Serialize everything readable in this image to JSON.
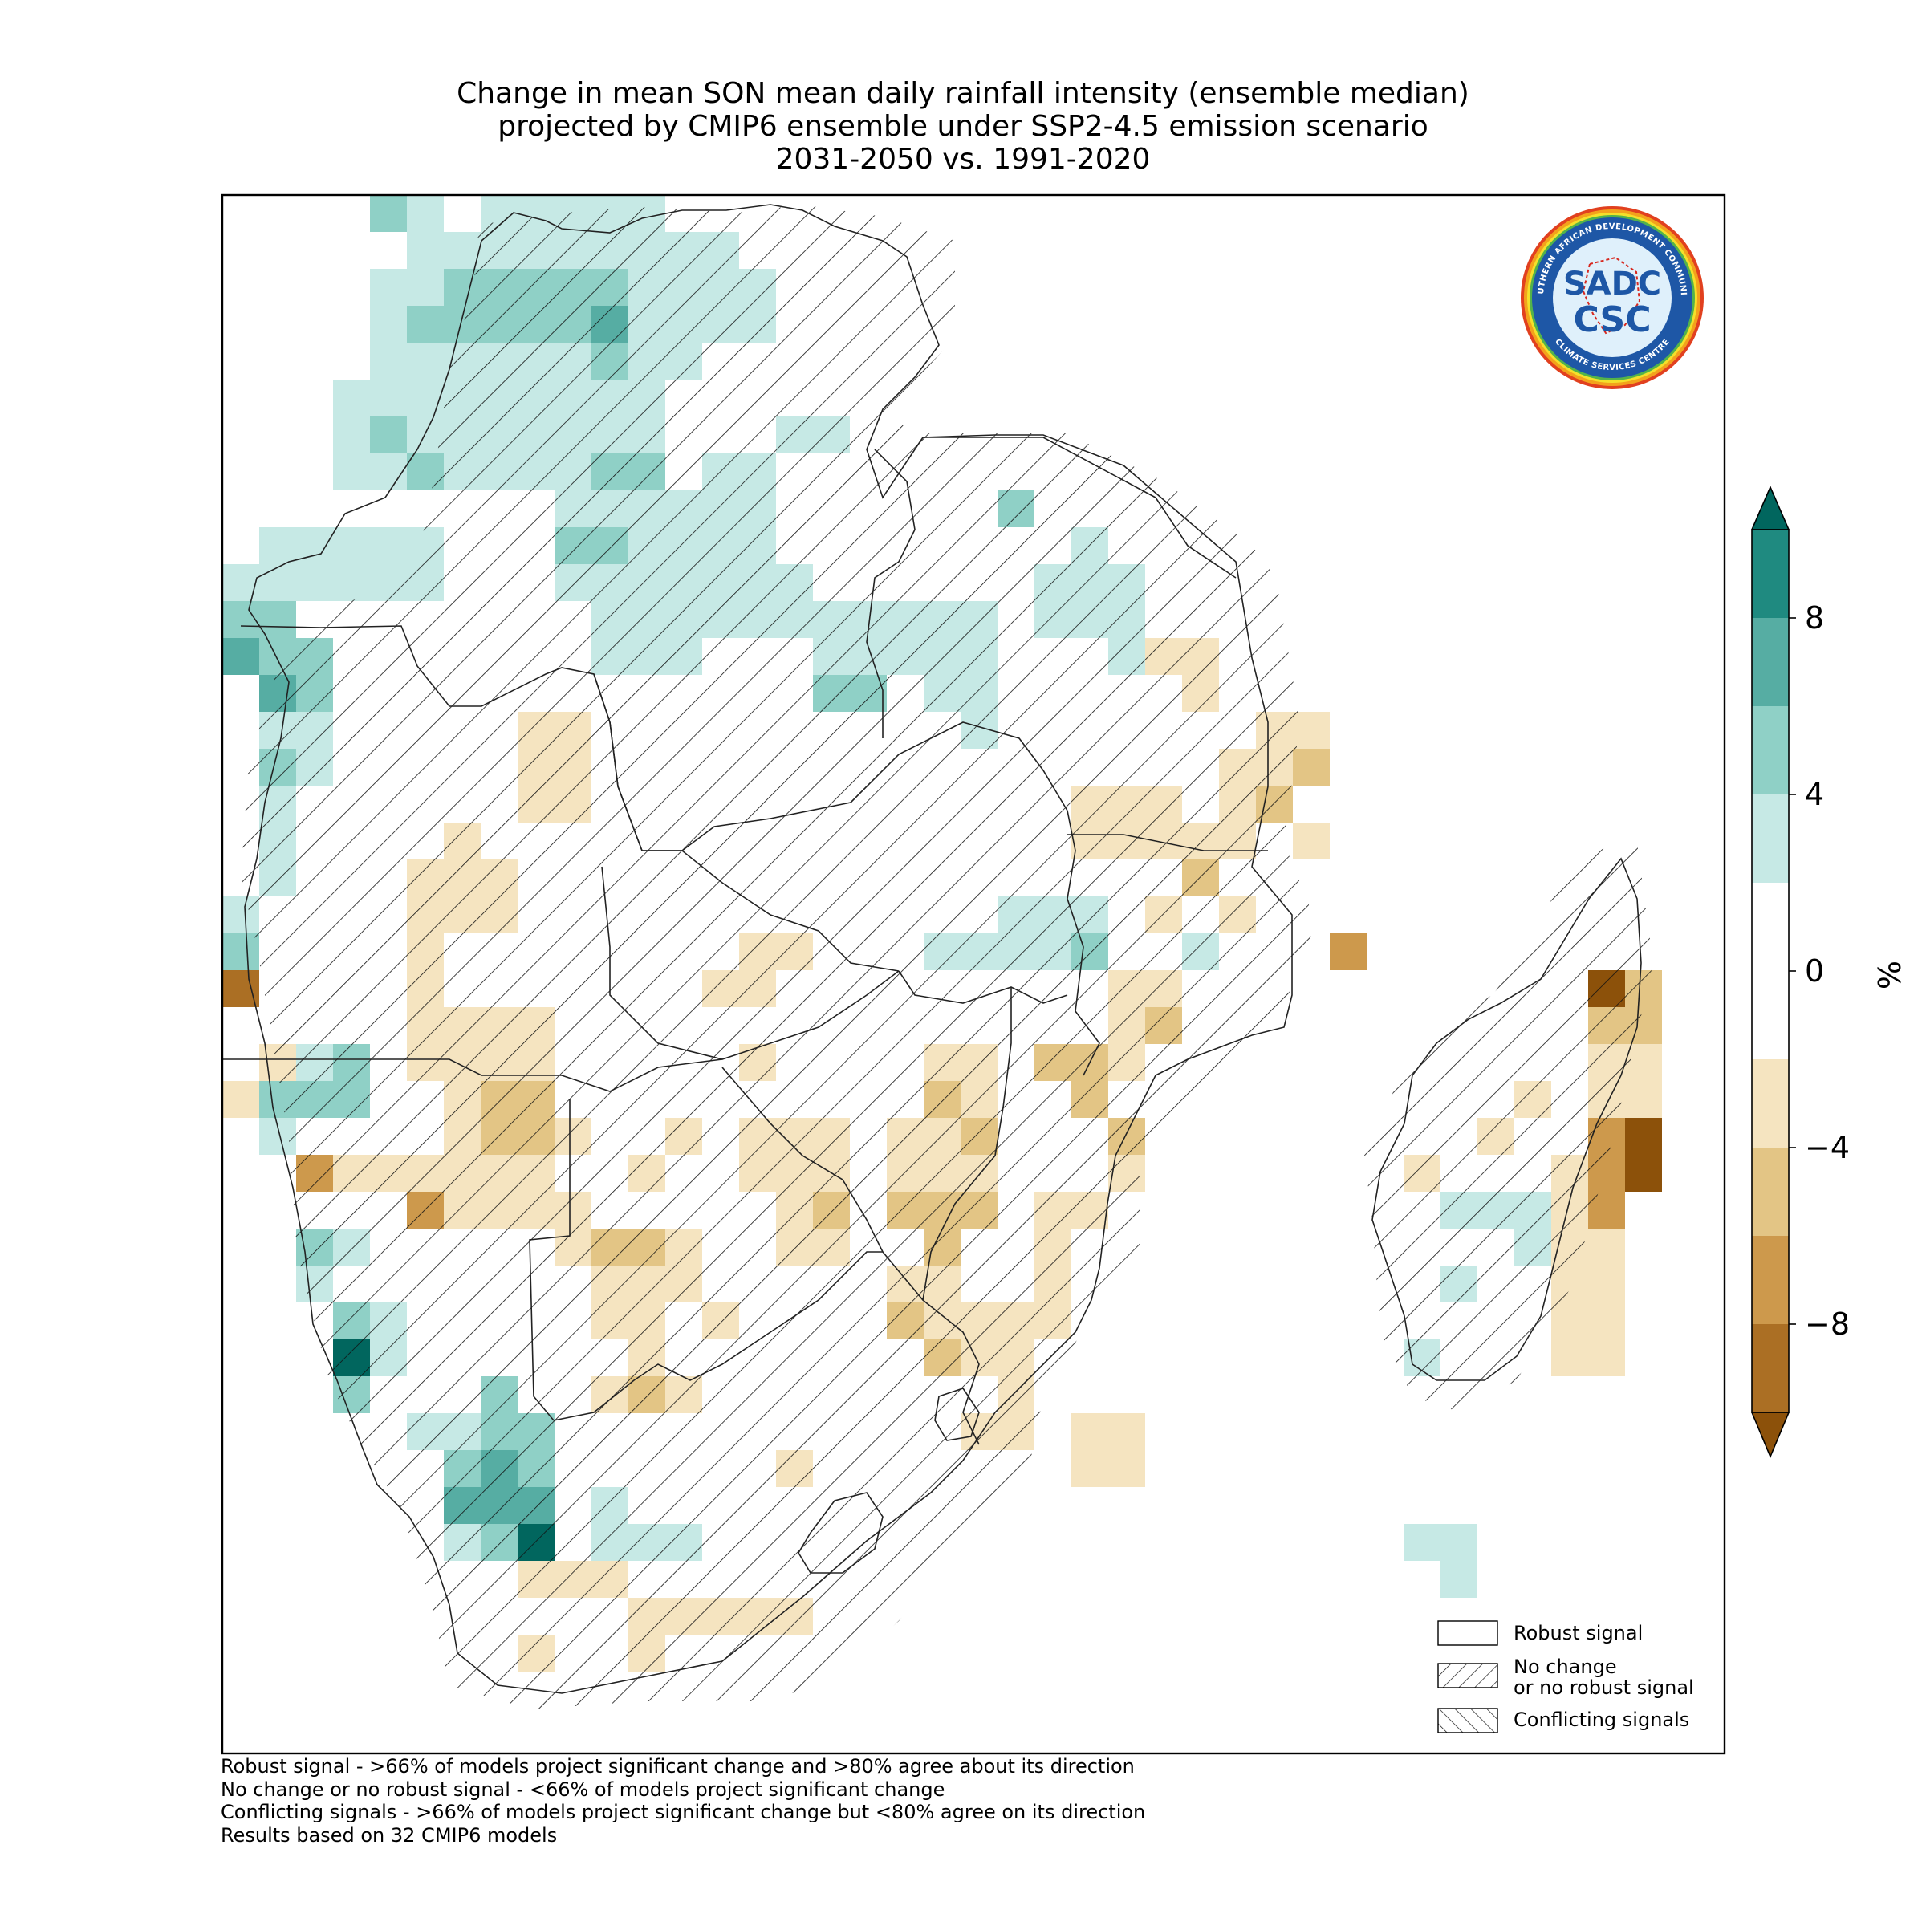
{
  "title": {
    "line1": "Change in mean SON mean daily rainfall intensity (ensemble median)",
    "line2": "projected by CMIP6 ensemble under SSP2-4.5 emission scenario",
    "line3": "2031-2050 vs. 1991-2020"
  },
  "logo": {
    "ring_text_top": "SOUTHERN AFRICAN DEVELOPMENT COMMUNITY",
    "ring_text_bottom": "CLIMATE SERVICES CENTRE",
    "center_top": "SADC",
    "center_bottom": "CSC"
  },
  "colorbar": {
    "unit_label": "%",
    "tick_labels": [
      "8",
      "4",
      "0",
      "−4",
      "−8"
    ],
    "tick_values": [
      8,
      4,
      0,
      -4,
      -8
    ],
    "range": [
      -10,
      10
    ],
    "extend": "both",
    "levels": [
      {
        "from": 8,
        "to": 10,
        "color": "#1f8a80"
      },
      {
        "from": 6,
        "to": 8,
        "color": "#56ada3"
      },
      {
        "from": 4,
        "to": 6,
        "color": "#8fd0c6"
      },
      {
        "from": 2,
        "to": 4,
        "color": "#c6e9e5"
      },
      {
        "from": -2,
        "to": 2,
        "color": "#ffffff"
      },
      {
        "from": -4,
        "to": -2,
        "color": "#f5e4c0"
      },
      {
        "from": -6,
        "to": -4,
        "color": "#e3c585"
      },
      {
        "from": -8,
        "to": -6,
        "color": "#cd994c"
      },
      {
        "from": -10,
        "to": -8,
        "color": "#ab6f24"
      }
    ],
    "over_color": "#01665e",
    "under_color": "#8c510a"
  },
  "legend": {
    "items": [
      {
        "label_lines": [
          "Robust signal"
        ],
        "hatch": "none"
      },
      {
        "label_lines": [
          "No change",
          "or no robust signal"
        ],
        "hatch": "forward"
      },
      {
        "label_lines": [
          "Conflicting signals"
        ],
        "hatch": "backward"
      }
    ]
  },
  "footnotes": [
    "Robust signal - >66% of models project significant change and >80% agree about its direction",
    "No change or no robust signal - <66% of models project significant change",
    "Conflicting signals - >66% of models project significant change but <80% agree on its direction",
    "Results based on 32 CMIP6 models"
  ],
  "map_data": {
    "region": "Southern Africa and Madagascar",
    "variable": "Change in SON mean daily rainfall intensity (%)",
    "pattern_summary": [
      {
        "area": "northern and north-western parts (Angola, DRC, Zambia, Tanzania)",
        "change": "+2 to +8 %",
        "signal": "mostly no robust signal"
      },
      {
        "area": "Atlantic coast of Angola and Namibia",
        "change": "+4 to >10 %",
        "signal": "mixed"
      },
      {
        "area": "interior (Botswana, Zimbabwe, South Africa)",
        "change": "-2 to -6 %",
        "signal": "no robust signal"
      },
      {
        "area": "Mozambique coast",
        "change": "-2 to -8 %",
        "signal": "mixed"
      },
      {
        "area": "eastern Madagascar",
        "change": "-4 to <-10 %",
        "signal": "mixed"
      },
      {
        "area": "south-western South Africa",
        "change": "+4 to >10 %",
        "signal": "mixed"
      }
    ]
  }
}
